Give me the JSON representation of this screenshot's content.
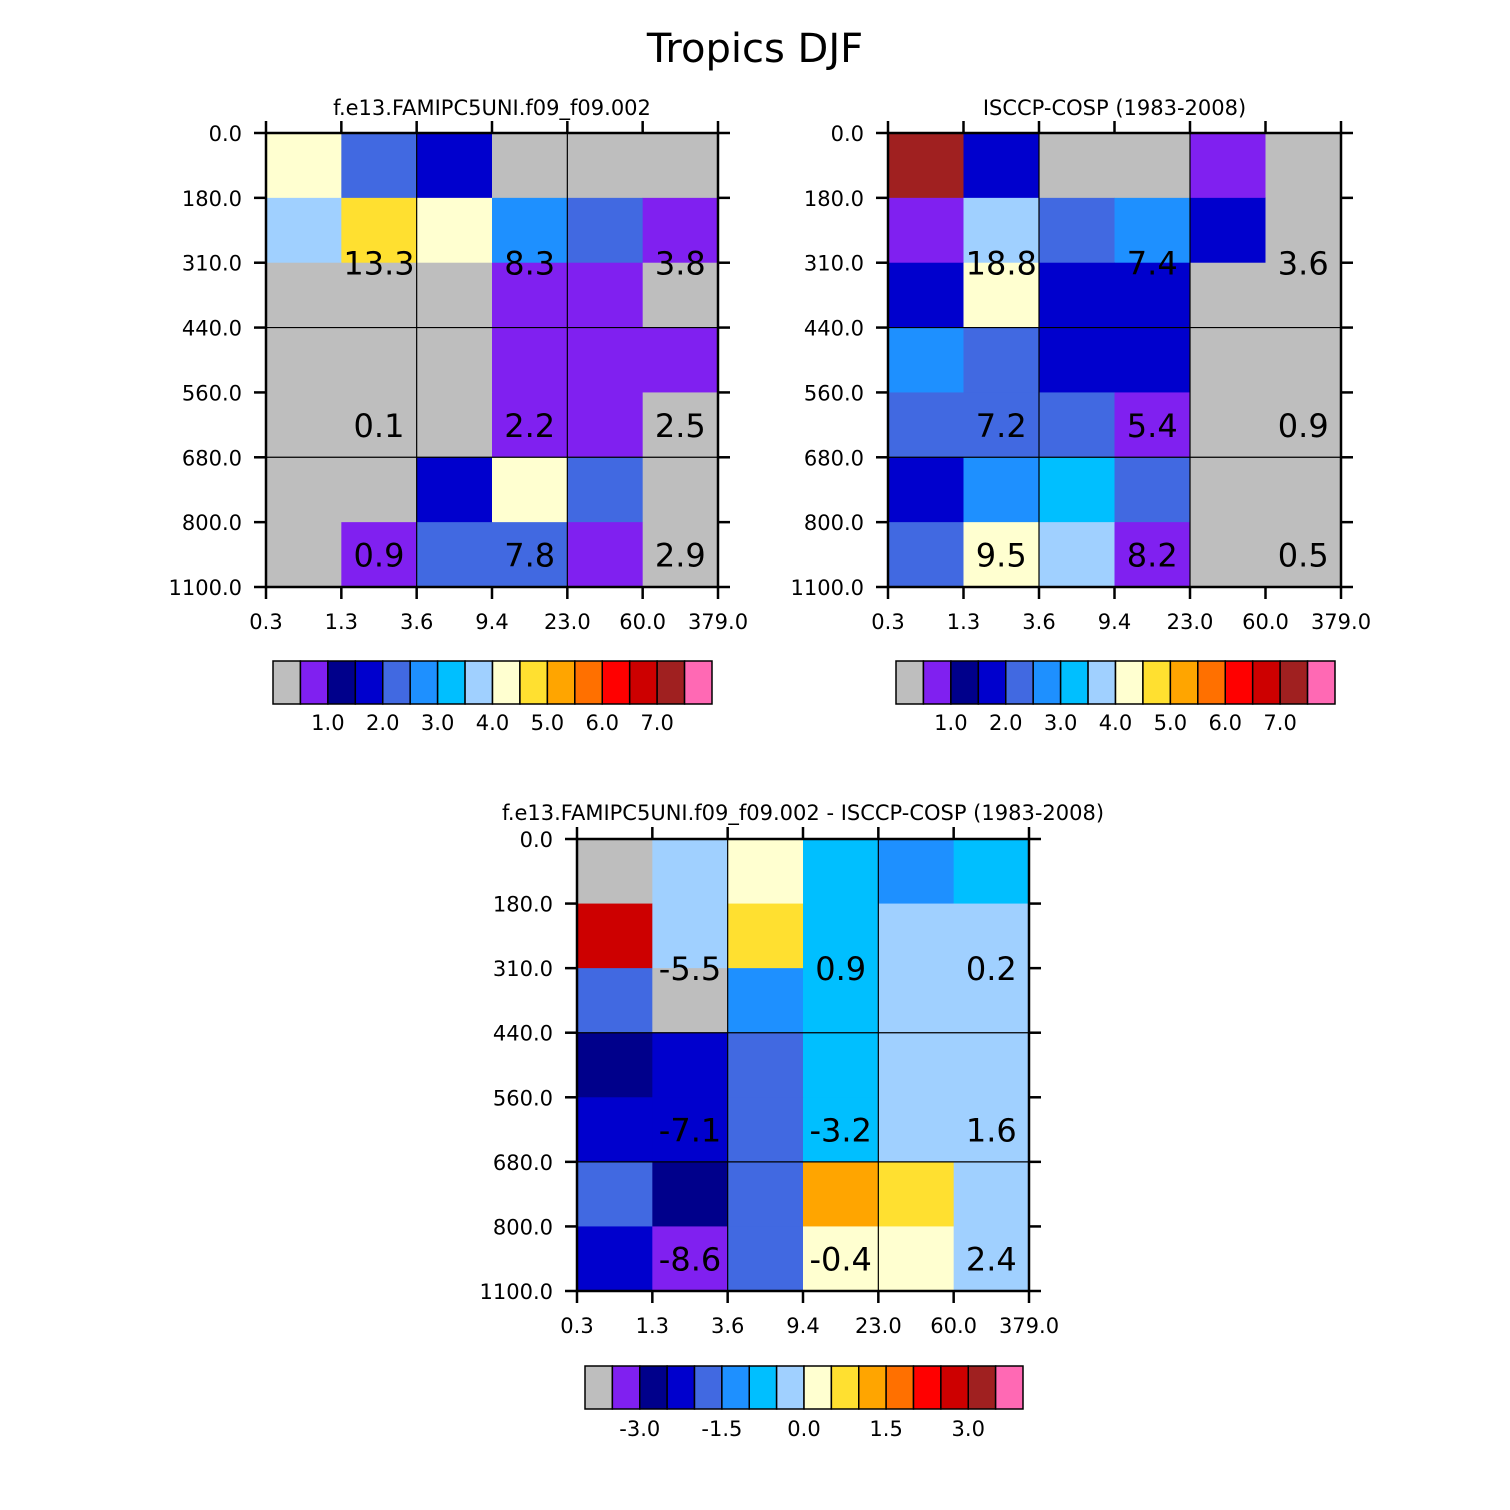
{
  "title": "Tropics DJF",
  "chart_data": [
    {
      "type": "heatmap",
      "title": "f.e13.FAMIPC5UNI.f09_f09.002",
      "x_ticks": [
        "0.3",
        "1.3",
        "3.6",
        "9.4",
        "23.0",
        "60.0",
        "379.0"
      ],
      "y_ticks": [
        "0.0",
        "180.0",
        "310.0",
        "440.0",
        "560.0",
        "680.0",
        "800.0",
        "1100.0"
      ],
      "cells": [
        [
          4.4,
          2.1,
          1.5,
          -1,
          -1,
          -1
        ],
        [
          3.8,
          4.5,
          4.3,
          2.5,
          2.0,
          0.9
        ],
        [
          -1,
          -1,
          -1,
          0.9,
          0.9,
          -1
        ],
        [
          -1,
          -1,
          -1,
          0.9,
          0.9,
          0.9
        ],
        [
          -1,
          -1,
          -1,
          0.9,
          0.9,
          -1
        ],
        [
          -1,
          -1,
          1.5,
          4.2,
          2.0,
          -1
        ],
        [
          -1,
          0.9,
          2.0,
          2.0,
          0.9,
          -1
        ]
      ],
      "group_labels": [
        {
          "label": "13.3",
          "row": 1.5,
          "col": 1
        },
        {
          "label": "8.3",
          "row": 1.5,
          "col": 3
        },
        {
          "label": "3.8",
          "row": 1.5,
          "col": 5
        },
        {
          "label": "0.1",
          "row": 4,
          "col": 1
        },
        {
          "label": "2.2",
          "row": 4,
          "col": 3
        },
        {
          "label": "2.5",
          "row": 4,
          "col": 5
        },
        {
          "label": "0.9",
          "row": 6,
          "col": 1
        },
        {
          "label": "7.8",
          "row": 6,
          "col": 3
        },
        {
          "label": "2.9",
          "row": 6,
          "col": 5
        }
      ],
      "colorbar_labels": [
        "1.0",
        "2.0",
        "3.0",
        "4.0",
        "5.0",
        "6.0",
        "7.0"
      ],
      "colorbar_colors": [
        "#bebebe",
        "#8020f0",
        "#00008b",
        "#0000cd",
        "#4169e1",
        "#1e90ff",
        "#00bfff",
        "#a0d0ff",
        "#ffffd0",
        "#ffe030",
        "#ffa500",
        "#ff7000",
        "#ff0000",
        "#cd0000",
        "#a02020",
        "#ff69b4"
      ],
      "levels": [
        -1,
        0.5,
        1.0,
        1.5,
        2.0,
        2.5,
        3.0,
        3.5,
        4.0,
        4.5,
        5.0,
        5.5,
        6.0,
        6.5,
        7.0,
        7.5
      ]
    },
    {
      "type": "heatmap",
      "title": "ISCCP-COSP (1983-2008)",
      "x_ticks": [
        "0.3",
        "1.3",
        "3.6",
        "9.4",
        "23.0",
        "60.0",
        "379.0"
      ],
      "y_ticks": [
        "0.0",
        "180.0",
        "310.0",
        "440.0",
        "560.0",
        "680.0",
        "800.0",
        "1100.0"
      ],
      "cells": [
        [
          7.2,
          1.5,
          -1,
          -1,
          0.9,
          -1
        ],
        [
          0.9,
          3.8,
          2.0,
          2.5,
          1.5,
          -1
        ],
        [
          1.5,
          4.3,
          1.5,
          1.5,
          -1,
          -1
        ],
        [
          2.5,
          2.0,
          1.5,
          1.5,
          -1,
          -1
        ],
        [
          2.0,
          2.0,
          2.0,
          0.9,
          -1,
          -1
        ],
        [
          1.5,
          2.5,
          3.0,
          2.0,
          -1,
          -1
        ],
        [
          2.0,
          4.3,
          3.5,
          0.9,
          -1,
          -1
        ]
      ],
      "group_labels": [
        {
          "label": "18.8",
          "row": 1.5,
          "col": 1
        },
        {
          "label": "7.4",
          "row": 1.5,
          "col": 3
        },
        {
          "label": "3.6",
          "row": 1.5,
          "col": 5
        },
        {
          "label": "7.2",
          "row": 4,
          "col": 1
        },
        {
          "label": "5.4",
          "row": 4,
          "col": 3
        },
        {
          "label": "0.9",
          "row": 4,
          "col": 5
        },
        {
          "label": "9.5",
          "row": 6,
          "col": 1
        },
        {
          "label": "8.2",
          "row": 6,
          "col": 3
        },
        {
          "label": "0.5",
          "row": 6,
          "col": 5
        }
      ],
      "colorbar_labels": [
        "1.0",
        "2.0",
        "3.0",
        "4.0",
        "5.0",
        "6.0",
        "7.0"
      ],
      "colorbar_colors": [
        "#bebebe",
        "#8020f0",
        "#00008b",
        "#0000cd",
        "#4169e1",
        "#1e90ff",
        "#00bfff",
        "#a0d0ff",
        "#ffffd0",
        "#ffe030",
        "#ffa500",
        "#ff7000",
        "#ff0000",
        "#cd0000",
        "#a02020",
        "#ff69b4"
      ],
      "levels": [
        -1,
        0.5,
        1.0,
        1.5,
        2.0,
        2.5,
        3.0,
        3.5,
        4.0,
        4.5,
        5.0,
        5.5,
        6.0,
        6.5,
        7.0,
        7.5
      ]
    },
    {
      "type": "heatmap",
      "title": "f.e13.FAMIPC5UNI.f09_f09.002 - ISCCP-COSP (1983-2008)",
      "x_ticks": [
        "0.3",
        "1.3",
        "3.6",
        "9.4",
        "23.0",
        "60.0",
        "379.0"
      ],
      "y_ticks": [
        "0.0",
        "180.0",
        "310.0",
        "440.0",
        "560.0",
        "680.0",
        "800.0",
        "1100.0"
      ],
      "cells": [
        [
          -9,
          0.2,
          0.6,
          -0.2,
          -0.7,
          -0.2
        ],
        [
          3.1,
          0.2,
          1.3,
          -0.2,
          0.2,
          0.2
        ],
        [
          -1.2,
          -9,
          -0.7,
          -0.2,
          0.2,
          0.2
        ],
        [
          -2.2,
          -1.7,
          -1.2,
          -0.2,
          0.2,
          0.2
        ],
        [
          -1.7,
          -1.7,
          -1.2,
          -0.2,
          0.2,
          0.2
        ],
        [
          -1.2,
          -2.2,
          -1.2,
          1.7,
          1.3,
          0.2
        ],
        [
          -1.7,
          -2.7,
          -1.2,
          0.6,
          0.6,
          0.2
        ]
      ],
      "group_labels": [
        {
          "label": "-5.5",
          "row": 1.5,
          "col": 1
        },
        {
          "label": "0.9",
          "row": 1.5,
          "col": 3
        },
        {
          "label": "0.2",
          "row": 1.5,
          "col": 5
        },
        {
          "label": "-7.1",
          "row": 4,
          "col": 1
        },
        {
          "label": "-3.2",
          "row": 4,
          "col": 3
        },
        {
          "label": "1.6",
          "row": 4,
          "col": 5
        },
        {
          "label": "-8.6",
          "row": 6,
          "col": 1
        },
        {
          "label": "-0.4",
          "row": 6,
          "col": 3
        },
        {
          "label": "2.4",
          "row": 6,
          "col": 5
        }
      ],
      "colorbar_labels": [
        "-3.0",
        "-1.5",
        "0.0",
        "1.5",
        "3.0"
      ],
      "colorbar_colors": [
        "#bebebe",
        "#8020f0",
        "#00008b",
        "#0000cd",
        "#4169e1",
        "#1e90ff",
        "#00bfff",
        "#a0d0ff",
        "#ffffd0",
        "#ffe030",
        "#ffa500",
        "#ff7000",
        "#ff0000",
        "#cd0000",
        "#a02020",
        "#ff69b4"
      ],
      "levels": [
        -9,
        -3.0,
        -2.5,
        -2.0,
        -1.5,
        -1.0,
        -0.5,
        0.0,
        0.5,
        1.0,
        1.5,
        2.0,
        2.5,
        3.0,
        3.5,
        4.0
      ]
    }
  ]
}
